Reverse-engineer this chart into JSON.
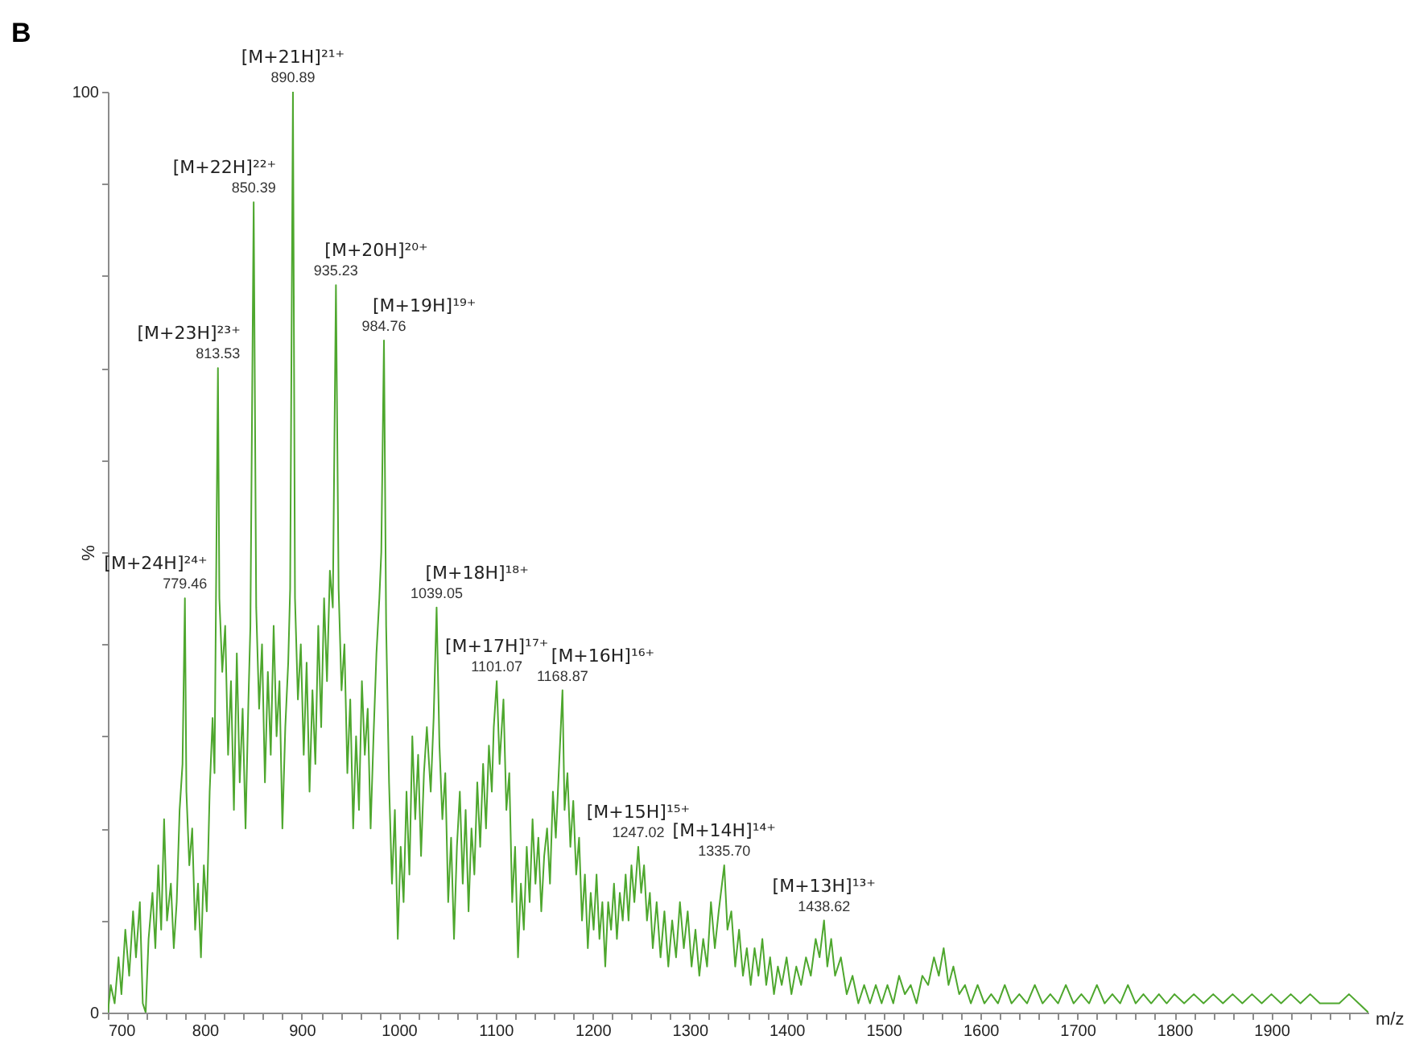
{
  "chart_data": {
    "type": "line",
    "title": "B",
    "xlabel": "m/z",
    "ylabel": "%",
    "color": "#4ea72e",
    "grid": false,
    "xlim": [
      700,
      2000
    ],
    "ylim": [
      0,
      100
    ],
    "xticks": [
      700,
      {
        "value": 720,
        "label": null
      },
      {
        "value": 740,
        "label": null
      },
      {
        "value": 760,
        "label": null
      },
      {
        "value": 780,
        "label": null
      },
      800,
      {
        "value": 820,
        "label": null
      },
      {
        "value": 840,
        "label": null
      },
      {
        "value": 860,
        "label": null
      },
      {
        "value": 880,
        "label": null
      },
      900,
      {
        "value": 920,
        "label": null
      },
      {
        "value": 940,
        "label": null
      },
      {
        "value": 960,
        "label": null
      },
      {
        "value": 980,
        "label": null
      },
      1000,
      {
        "value": 1020,
        "label": null
      },
      {
        "value": 1040,
        "label": null
      },
      {
        "value": 1060,
        "label": null
      },
      {
        "value": 1080,
        "label": null
      },
      1100,
      {
        "value": 1120,
        "label": null
      },
      {
        "value": 1140,
        "label": null
      },
      {
        "value": 1160,
        "label": null
      },
      {
        "value": 1180,
        "label": null
      },
      1200,
      {
        "value": 1220,
        "label": null
      },
      {
        "value": 1240,
        "label": null
      },
      {
        "value": 1260,
        "label": null
      },
      {
        "value": 1280,
        "label": null
      },
      1300,
      {
        "value": 1320,
        "label": null
      },
      {
        "value": 1340,
        "label": null
      },
      {
        "value": 1360,
        "label": null
      },
      {
        "value": 1380,
        "label": null
      },
      1400,
      {
        "value": 1420,
        "label": null
      },
      {
        "value": 1440,
        "label": null
      },
      {
        "value": 1460,
        "label": null
      },
      {
        "value": 1480,
        "label": null
      },
      1500,
      {
        "value": 1520,
        "label": null
      },
      {
        "value": 1540,
        "label": null
      },
      {
        "value": 1560,
        "label": null
      },
      {
        "value": 1580,
        "label": null
      },
      1600,
      {
        "value": 1620,
        "label": null
      },
      {
        "value": 1640,
        "label": null
      },
      {
        "value": 1660,
        "label": null
      },
      {
        "value": 1680,
        "label": null
      },
      1700,
      {
        "value": 1720,
        "label": null
      },
      {
        "value": 1740,
        "label": null
      },
      {
        "value": 1760,
        "label": null
      },
      {
        "value": 1780,
        "label": null
      },
      1800,
      {
        "value": 1820,
        "label": null
      },
      {
        "value": 1840,
        "label": null
      },
      {
        "value": 1860,
        "label": null
      },
      {
        "value": 1880,
        "label": null
      },
      1900,
      {
        "value": 1920,
        "label": null
      },
      {
        "value": 1940,
        "label": null
      },
      {
        "value": 1960,
        "label": null
      },
      {
        "value": 1980,
        "label": null
      }
    ],
    "yticks": [
      0,
      {
        "value": 10,
        "label": null
      },
      {
        "value": 20,
        "label": null
      },
      {
        "value": 30,
        "label": null
      },
      {
        "value": 40,
        "label": null
      },
      {
        "value": 50,
        "label": null
      },
      {
        "value": 60,
        "label": null
      },
      {
        "value": 70,
        "label": null
      },
      {
        "value": 80,
        "label": null
      },
      {
        "value": 90,
        "label": null
      },
      100
    ],
    "x": [
      700,
      703,
      707,
      711,
      714,
      718,
      722,
      726,
      729,
      733,
      736,
      739,
      742,
      746,
      749,
      752,
      755,
      758,
      761,
      765,
      768,
      771,
      774,
      777,
      779.46,
      781,
      784,
      787,
      790,
      793,
      796,
      799,
      802,
      805,
      808,
      810,
      813.53,
      815,
      818,
      821,
      824,
      827,
      830,
      833,
      836,
      839,
      842,
      845,
      847,
      850.39,
      853,
      856,
      859,
      862,
      865,
      868,
      871,
      874,
      877,
      880,
      883,
      886,
      888,
      890.89,
      893,
      896,
      899,
      902,
      905,
      908,
      911,
      914,
      917,
      920,
      923,
      926,
      929,
      932,
      935.23,
      938,
      941,
      944,
      947,
      950,
      953,
      956,
      959,
      962,
      965,
      968,
      971,
      974,
      977,
      980,
      982,
      984.76,
      987,
      990,
      993,
      996,
      999,
      1002,
      1005,
      1008,
      1011,
      1014,
      1017,
      1020,
      1023,
      1026,
      1029,
      1033,
      1036,
      1039.05,
      1042,
      1045,
      1048,
      1051,
      1054,
      1057,
      1060,
      1063,
      1066,
      1069,
      1072,
      1075,
      1078,
      1081,
      1084,
      1087,
      1090,
      1093,
      1096,
      1098,
      1101.07,
      1104,
      1108,
      1111,
      1114,
      1117,
      1120,
      1123,
      1126,
      1129,
      1132,
      1135,
      1138,
      1141,
      1144,
      1147,
      1150,
      1153,
      1156,
      1159,
      1162,
      1165,
      1168.87,
      1171,
      1174,
      1177,
      1180,
      1183,
      1186,
      1189,
      1192,
      1195,
      1198,
      1201,
      1204,
      1207,
      1210,
      1213,
      1216,
      1219,
      1222,
      1225,
      1228,
      1231,
      1234,
      1237,
      1240,
      1243,
      1247.02,
      1250,
      1253,
      1256,
      1259,
      1262,
      1266,
      1270,
      1274,
      1278,
      1282,
      1286,
      1290,
      1294,
      1298,
      1302,
      1306,
      1310,
      1314,
      1318,
      1322,
      1326,
      1330,
      1335.7,
      1339,
      1343,
      1347,
      1351,
      1355,
      1359,
      1363,
      1367,
      1371,
      1375,
      1379,
      1383,
      1387,
      1391,
      1395,
      1400,
      1405,
      1410,
      1415,
      1420,
      1425,
      1430,
      1434,
      1438.62,
      1442,
      1446,
      1450,
      1456,
      1462,
      1468,
      1474,
      1480,
      1486,
      1492,
      1498,
      1504,
      1510,
      1516,
      1522,
      1528,
      1534,
      1540,
      1546,
      1552,
      1557,
      1562,
      1567,
      1572,
      1578,
      1584,
      1590,
      1597,
      1604,
      1611,
      1618,
      1625,
      1632,
      1640,
      1648,
      1656,
      1664,
      1672,
      1680,
      1688,
      1696,
      1704,
      1712,
      1720,
      1728,
      1736,
      1744,
      1752,
      1760,
      1768,
      1776,
      1784,
      1792,
      1800,
      1810,
      1820,
      1830,
      1840,
      1850,
      1860,
      1870,
      1880,
      1890,
      1900,
      1910,
      1920,
      1930,
      1940,
      1950,
      1960,
      1970,
      1980,
      1990,
      2000
    ],
    "values": [
      0,
      3,
      1,
      6,
      2,
      9,
      4,
      11,
      6,
      12,
      1,
      0,
      8,
      13,
      7,
      16,
      9,
      21,
      10,
      14,
      7,
      12,
      22,
      27,
      45,
      24,
      16,
      20,
      9,
      14,
      6,
      16,
      11,
      24,
      32,
      26,
      70,
      45,
      37,
      42,
      28,
      36,
      22,
      39,
      25,
      33,
      20,
      34,
      42,
      88,
      44,
      33,
      40,
      25,
      37,
      28,
      42,
      30,
      36,
      20,
      31,
      38,
      46,
      100,
      45,
      34,
      40,
      28,
      38,
      24,
      35,
      27,
      42,
      31,
      45,
      36,
      48,
      44,
      79,
      46,
      35,
      40,
      26,
      34,
      20,
      30,
      22,
      36,
      28,
      33,
      20,
      30,
      39,
      45,
      50,
      73,
      42,
      25,
      14,
      22,
      8,
      18,
      12,
      24,
      15,
      30,
      21,
      28,
      17,
      26,
      31,
      24,
      32,
      44,
      29,
      21,
      26,
      12,
      19,
      8,
      18,
      24,
      14,
      22,
      11,
      20,
      15,
      25,
      18,
      27,
      20,
      29,
      24,
      31,
      36,
      27,
      34,
      22,
      26,
      12,
      18,
      6,
      14,
      9,
      18,
      12,
      21,
      14,
      19,
      11,
      17,
      20,
      14,
      24,
      19,
      26,
      35,
      22,
      26,
      18,
      23,
      15,
      19,
      10,
      15,
      7,
      13,
      9,
      15,
      8,
      12,
      5,
      12,
      9,
      14,
      8,
      13,
      10,
      15,
      10,
      16,
      12,
      18,
      13,
      16,
      10,
      13,
      7,
      12,
      6,
      11,
      5,
      10,
      6,
      12,
      7,
      11,
      5,
      9,
      4,
      8,
      5,
      12,
      7,
      11,
      16,
      9,
      11,
      5,
      9,
      4,
      7,
      3,
      7,
      4,
      8,
      3,
      6,
      2,
      5,
      3,
      6,
      2,
      5,
      3,
      6,
      4,
      8,
      6,
      10,
      5,
      8,
      4,
      6,
      2,
      4,
      1,
      3,
      1,
      3,
      1,
      3,
      1,
      4,
      2,
      3,
      1,
      4,
      3,
      6,
      4,
      7,
      3,
      5,
      2,
      3,
      1,
      3,
      1,
      2,
      1,
      3,
      1,
      2,
      1,
      3,
      1,
      2,
      1,
      3,
      1,
      2,
      1,
      3,
      1,
      2,
      1,
      3,
      1,
      2,
      1,
      2,
      1,
      2,
      1,
      2,
      1,
      2,
      1,
      2,
      1,
      2,
      1,
      2,
      1,
      2,
      1,
      2,
      1,
      1,
      1,
      2,
      1,
      0
    ],
    "annotations": [
      {
        "text": "779.46",
        "x": 779.46,
        "y": 45
      },
      {
        "text": "[M+24H]²⁴⁺",
        "x": 779.46,
        "y": 45
      },
      {
        "text": "813.53",
        "x": 813.53,
        "y": 70
      },
      {
        "text": "[M+23H]²³⁺",
        "x": 813.53,
        "y": 70
      },
      {
        "text": "850.39",
        "x": 850.39,
        "y": 88
      },
      {
        "text": "[M+22H]²²⁺",
        "x": 850.39,
        "y": 88
      },
      {
        "text": "890.89",
        "x": 890.89,
        "y": 100
      },
      {
        "text": "[M+21H]²¹⁺",
        "x": 890.89,
        "y": 100
      },
      {
        "text": "935.23",
        "x": 935.23,
        "y": 79
      },
      {
        "text": "[M+20H]²⁰⁺",
        "x": 935.23,
        "y": 79
      },
      {
        "text": "984.76",
        "x": 984.76,
        "y": 73
      },
      {
        "text": "[M+19H]¹⁹⁺",
        "x": 984.76,
        "y": 73
      },
      {
        "text": "1039.05",
        "x": 1039.05,
        "y": 44
      },
      {
        "text": "[M+18H]¹⁸⁺",
        "x": 1039.05,
        "y": 44
      },
      {
        "text": "1101.07",
        "x": 1101.07,
        "y": 36
      },
      {
        "text": "[M+17H]¹⁷⁺",
        "x": 1101.07,
        "y": 36
      },
      {
        "text": "1168.87",
        "x": 1168.87,
        "y": 35
      },
      {
        "text": "[M+16H]¹⁶⁺",
        "x": 1168.87,
        "y": 35
      },
      {
        "text": "1247.02",
        "x": 1247.02,
        "y": 18
      },
      {
        "text": "[M+15H]¹⁵⁺",
        "x": 1247.02,
        "y": 18
      },
      {
        "text": "1335.70",
        "x": 1335.7,
        "y": 16
      },
      {
        "text": "[M+14H]¹⁴⁺",
        "x": 1335.7,
        "y": 16
      },
      {
        "text": "1438.62",
        "x": 1438.62,
        "y": 10
      },
      {
        "text": "[M+13H]¹³⁺",
        "x": 1438.62,
        "y": 10
      }
    ]
  }
}
